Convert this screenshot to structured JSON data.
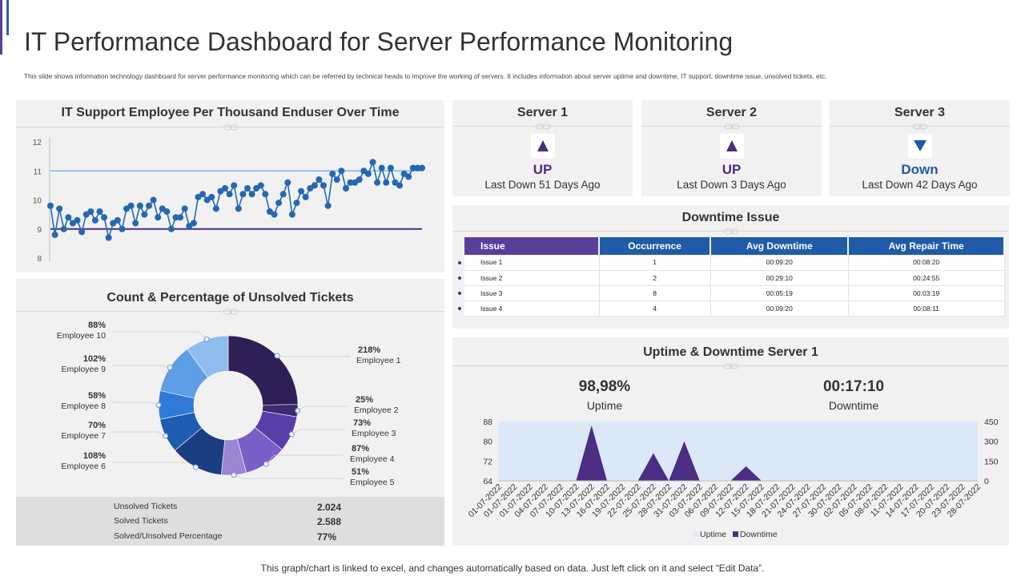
{
  "header": {
    "title": "IT Performance Dashboard for Server Performance Monitoring",
    "subtitle": "This slide shows information technology dashboard for server performance monitoring which can be referred by technical heads to improve the working of servers. It includes information about server uptime and downtime, IT support, downtime issue, unsolved tickets, etc."
  },
  "colors": {
    "purple": "#4b2d84",
    "blue": "#1f5ba8",
    "line_blue": "#2468b2",
    "ref_light": "#7fb4e6",
    "ref_dark": "#4b2d84",
    "panel": "#f1f1f1"
  },
  "servers": [
    {
      "name": "Server 1",
      "status": "UP",
      "direction": "up",
      "last_down": "Last Down 51 Days Ago",
      "icon": "triangle-up-icon"
    },
    {
      "name": "Server 2",
      "status": "UP",
      "direction": "up",
      "last_down": "Last Down 3 Days Ago",
      "icon": "triangle-up-icon"
    },
    {
      "name": "Server 3",
      "status": "Down",
      "direction": "down",
      "last_down": "Last Down 42 Days Ago",
      "icon": "triangle-down-icon"
    }
  ],
  "downtime_issue": {
    "title": "Downtime Issue",
    "columns": [
      "Issue",
      "Occurrence",
      "Avg Downtime",
      "Avg Repair Time"
    ],
    "rows": [
      [
        "Issue 1",
        "1",
        "00:09:20",
        "00:08:20"
      ],
      [
        "Issue 2",
        "2",
        "00:29:10",
        "00:24:55"
      ],
      [
        "Issue 3",
        "8",
        "00:05:19",
        "00:03:19"
      ],
      [
        "Issue 4",
        "4",
        "00:09:20",
        "00:08:11"
      ]
    ]
  },
  "uptime_panel": {
    "title": "Uptime & Downtime Server 1",
    "uptime_value": "98,98%",
    "uptime_label": "Uptime",
    "downtime_value": "00:17:10",
    "downtime_label": "Downtime"
  },
  "tickets": {
    "title": "Count & Percentage of Unsolved Tickets",
    "summary": [
      {
        "label": "Unsolved Tickets",
        "value": "2.024"
      },
      {
        "label": "Solved Tickets",
        "value": "2.588"
      },
      {
        "label": "Solved/Unsolved Percentage",
        "value": "77%"
      }
    ]
  },
  "footer": "This graph/chart is linked to excel,  and changes automatically based on data. Just left click on it and select “Edit Data”.",
  "chart_data": [
    {
      "id": "it_support",
      "type": "line",
      "title": "IT Support Employee Per Thousand Enduser Over Time",
      "ylim": [
        8,
        12
      ],
      "yticks": [
        "8",
        "9",
        "10",
        "11",
        "12"
      ],
      "reference_lines": [
        11,
        9
      ],
      "values": [
        9.8,
        8.8,
        9.7,
        9.0,
        9.4,
        9.2,
        9.3,
        8.9,
        9.5,
        9.6,
        9.3,
        9.6,
        9.4,
        8.7,
        9.2,
        9.3,
        9.0,
        9.7,
        9.8,
        9.2,
        9.8,
        9.5,
        9.8,
        10.0,
        9.4,
        9.7,
        9.6,
        9.0,
        9.4,
        9.4,
        9.7,
        9.1,
        9.2,
        10.1,
        10.2,
        10.0,
        10.1,
        9.7,
        10.3,
        10.4,
        10.2,
        10.5,
        9.7,
        10.2,
        10.4,
        10.2,
        10.4,
        10.5,
        10.2,
        9.6,
        9.5,
        9.9,
        10.2,
        10.6,
        9.5,
        9.9,
        10.3,
        10.1,
        10.4,
        10.5,
        10.7,
        10.5,
        9.8,
        10.9,
        10.7,
        11.0,
        10.4,
        10.6,
        10.6,
        10.7,
        11.0,
        10.9,
        11.3,
        10.6,
        11.1,
        10.6,
        11.1,
        10.6,
        10.5,
        10.9,
        10.8,
        11.1,
        11.1,
        11.1
      ]
    },
    {
      "id": "unsolved_tickets",
      "type": "pie",
      "categories": [
        "Employee 1",
        "Employee 2",
        "Employee 3",
        "Employee 4",
        "Employee 5",
        "Employee 6",
        "Employee 7",
        "Employee 8",
        "Employee 9",
        "Employee 10"
      ],
      "labels": [
        "218%",
        "25%",
        "73%",
        "87%",
        "51%",
        "108%",
        "70%",
        "58%",
        "102%",
        "88%"
      ],
      "values": [
        218,
        25,
        73,
        87,
        51,
        108,
        70,
        58,
        102,
        88
      ],
      "colors": [
        "#2e1f57",
        "#3d2a73",
        "#5a3ea8",
        "#7a5ec7",
        "#9a86d3",
        "#1a3e82",
        "#1d5cb1",
        "#2f7ad6",
        "#5e9ee6",
        "#8fbdf0"
      ]
    },
    {
      "id": "uptime_downtime",
      "type": "area",
      "x": [
        "01-07-2022",
        "01-07-2022",
        "01-07-2022",
        "04-07-2022",
        "07-07-2022",
        "10-07-2022",
        "13-07-2022",
        "16-07-2022",
        "19-07-2022",
        "22-07-2022",
        "25-07-2022",
        "28-07-2022",
        "31-07-2022",
        "03-07-2022",
        "06-07-2022",
        "09-07-2022",
        "12-07-2022",
        "15-07-2022",
        "18-07-2022",
        "21-07-2022",
        "24-07-2022",
        "27-07-2022",
        "30-07-2022",
        "02-07-2022",
        "05-07-2022",
        "08-07-2022",
        "11-07-2022",
        "14-07-2022",
        "17-07-2022",
        "20-07-2022",
        "23-07-2022",
        "28-07-2022"
      ],
      "series": [
        {
          "name": "Uptime",
          "axis": "left",
          "values": [
            88,
            88,
            88,
            88,
            88,
            88,
            88,
            88,
            88,
            88,
            88,
            88,
            88,
            88,
            88,
            88,
            88,
            88,
            88,
            88,
            88,
            88,
            88,
            88,
            88,
            88,
            88,
            88,
            88,
            88,
            88,
            88
          ]
        },
        {
          "name": "Downtime",
          "axis": "right",
          "values": [
            0,
            0,
            0,
            0,
            0,
            0,
            420,
            0,
            0,
            0,
            210,
            0,
            300,
            0,
            0,
            0,
            110,
            0,
            0,
            0,
            0,
            0,
            0,
            0,
            0,
            0,
            0,
            0,
            0,
            0,
            0,
            0
          ]
        }
      ],
      "ylim_left": [
        64,
        88
      ],
      "yticks_left": [
        "64",
        "72",
        "80",
        "88"
      ],
      "ylim_right": [
        0,
        450
      ],
      "yticks_right": [
        "0",
        "150",
        "300",
        "450"
      ],
      "legend": [
        "Uptime",
        "Downtime"
      ]
    }
  ]
}
